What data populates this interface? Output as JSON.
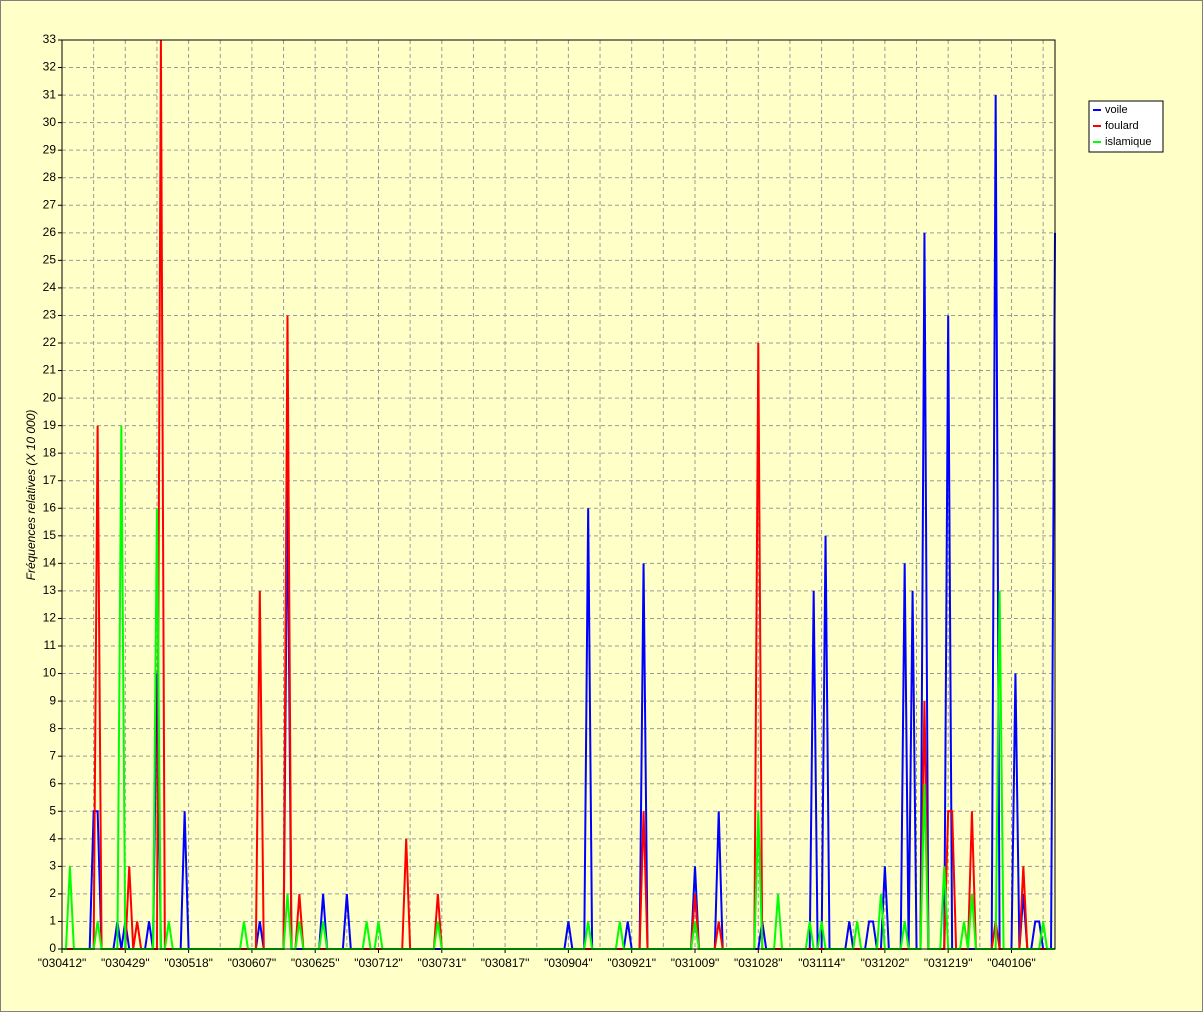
{
  "chart_data": {
    "type": "line",
    "ylabel": "Fréquences relatives (X 10 000)",
    "ylim": [
      0,
      33
    ],
    "yticks": [
      0,
      1,
      2,
      3,
      4,
      5,
      6,
      7,
      8,
      9,
      10,
      11,
      12,
      13,
      14,
      15,
      16,
      17,
      18,
      19,
      20,
      21,
      22,
      23,
      24,
      25,
      26,
      27,
      28,
      29,
      30,
      31,
      32,
      33
    ],
    "grid": true,
    "legend": "right",
    "categories": [
      "\"030412\"",
      null,
      null,
      null,
      null,
      null,
      null,
      null,
      null,
      null,
      null,
      null,
      null,
      null,
      null,
      null,
      "\"030429\"",
      null,
      null,
      null,
      null,
      null,
      null,
      null,
      null,
      null,
      null,
      null,
      null,
      null,
      null,
      null,
      "\"030518\"",
      null,
      null,
      null,
      null,
      null,
      null,
      null,
      null,
      null,
      null,
      null,
      null,
      null,
      null,
      null,
      "\"030607\"",
      null,
      null,
      null,
      null,
      null,
      null,
      null,
      null,
      null,
      null,
      null,
      null,
      null,
      null,
      null,
      "\"030625\"",
      null,
      null,
      null,
      null,
      null,
      null,
      null,
      null,
      null,
      null,
      null,
      null,
      null,
      null,
      null,
      "\"030712\"",
      null,
      null,
      null,
      null,
      null,
      null,
      null,
      null,
      null,
      null,
      null,
      null,
      null,
      null,
      null,
      "\"030731\"",
      null,
      null,
      null,
      null,
      null,
      null,
      null,
      null,
      null,
      null,
      null,
      null,
      null,
      null,
      null,
      "\"030817\"",
      null,
      null,
      null,
      null,
      null,
      null,
      null,
      null,
      null,
      null,
      null,
      null,
      null,
      null,
      null,
      "\"030904\"",
      null,
      null,
      null,
      null,
      null,
      null,
      null,
      null,
      null,
      null,
      null,
      null,
      null,
      null,
      null,
      "\"030921\"",
      null,
      null,
      null,
      null,
      null,
      null,
      null,
      null,
      null,
      null,
      null,
      null,
      null,
      null,
      null,
      "\"031009\"",
      null,
      null,
      null,
      null,
      null,
      null,
      null,
      null,
      null,
      null,
      null,
      null,
      null,
      null,
      null,
      "\"031028\"",
      null,
      null,
      null,
      null,
      null,
      null,
      null,
      null,
      null,
      null,
      null,
      null,
      null,
      null,
      null,
      "\"031114\"",
      null,
      null,
      null,
      null,
      null,
      null,
      null,
      null,
      null,
      null,
      null,
      null,
      null,
      null,
      null,
      "\"031202\"",
      null,
      null,
      null,
      null,
      null,
      null,
      null,
      null,
      null,
      null,
      null,
      null,
      null,
      null,
      null,
      "\"031219\"",
      null,
      null,
      null,
      null,
      null,
      null,
      null,
      null,
      null,
      null,
      null,
      null,
      null,
      null,
      null,
      "\"040106\"",
      null,
      null,
      null,
      null,
      null,
      null,
      null,
      null,
      null,
      null,
      null
    ],
    "series": [
      {
        "name": "voile",
        "color": "#0000ff",
        "values": [
          0,
          0,
          0,
          0,
          0,
          0,
          0,
          0,
          5,
          5,
          0,
          0,
          0,
          0,
          1,
          0,
          1,
          0,
          0,
          0,
          0,
          0,
          1,
          0,
          10,
          0,
          0,
          0,
          0,
          0,
          0,
          5,
          0,
          0,
          0,
          0,
          0,
          0,
          0,
          0,
          0,
          0,
          0,
          0,
          0,
          0,
          0,
          0,
          0,
          0,
          1,
          0,
          0,
          0,
          0,
          0,
          0,
          17,
          0,
          0,
          0,
          0,
          0,
          0,
          0,
          0,
          2,
          0,
          0,
          0,
          0,
          0,
          2,
          0,
          0,
          0,
          0,
          0,
          0,
          0,
          0,
          0,
          0,
          0,
          0,
          0,
          0,
          0,
          0,
          0,
          0,
          0,
          0,
          0,
          0,
          0,
          0,
          0,
          0,
          0,
          0,
          0,
          0,
          0,
          0,
          0,
          0,
          0,
          0,
          0,
          0,
          0,
          0,
          0,
          0,
          0,
          0,
          0,
          0,
          0,
          0,
          0,
          0,
          0,
          0,
          0,
          0,
          0,
          1,
          0,
          0,
          0,
          0,
          16,
          0,
          0,
          0,
          0,
          0,
          0,
          0,
          0,
          0,
          1,
          0,
          0,
          0,
          14,
          0,
          0,
          0,
          0,
          0,
          0,
          0,
          0,
          0,
          0,
          0,
          0,
          3,
          0,
          0,
          0,
          0,
          0,
          5,
          0,
          0,
          0,
          0,
          0,
          0,
          0,
          0,
          0,
          0,
          1,
          0,
          0,
          0,
          0,
          0,
          0,
          0,
          0,
          0,
          0,
          0,
          0,
          13,
          0,
          0,
          15,
          0,
          0,
          0,
          0,
          0,
          1,
          0,
          0,
          0,
          0,
          1,
          1,
          0,
          0,
          3,
          0,
          0,
          0,
          0,
          14,
          0,
          13,
          0,
          0,
          26,
          0,
          0,
          0,
          0,
          0,
          23,
          0,
          0,
          0,
          0,
          0,
          0,
          0,
          0,
          0,
          0,
          0,
          31,
          0,
          0,
          0,
          0,
          10,
          0,
          2,
          0,
          0,
          1,
          1,
          0,
          0,
          0,
          26
        ]
      },
      {
        "name": "foulard",
        "color": "#ff0000",
        "values": [
          0,
          0,
          0,
          0,
          0,
          0,
          0,
          0,
          0,
          19,
          0,
          0,
          0,
          0,
          0,
          0,
          0,
          3,
          0,
          1,
          0,
          0,
          0,
          0,
          0,
          33,
          0,
          0,
          0,
          0,
          0,
          0,
          0,
          0,
          0,
          0,
          0,
          0,
          0,
          0,
          0,
          0,
          0,
          0,
          0,
          0,
          0,
          0,
          0,
          0,
          13,
          0,
          0,
          0,
          0,
          0,
          0,
          23,
          0,
          0,
          2,
          0,
          0,
          0,
          0,
          0,
          0,
          0,
          0,
          0,
          0,
          0,
          0,
          0,
          0,
          0,
          0,
          0,
          0,
          0,
          0,
          0,
          0,
          0,
          0,
          0,
          0,
          4,
          0,
          0,
          0,
          0,
          0,
          0,
          0,
          2,
          0,
          0,
          0,
          0,
          0,
          0,
          0,
          0,
          0,
          0,
          0,
          0,
          0,
          0,
          0,
          0,
          0,
          0,
          0,
          0,
          0,
          0,
          0,
          0,
          0,
          0,
          0,
          0,
          0,
          0,
          0,
          0,
          0,
          0,
          0,
          0,
          0,
          0,
          0,
          0,
          0,
          0,
          0,
          0,
          0,
          0,
          0,
          0,
          0,
          0,
          0,
          5,
          0,
          0,
          0,
          0,
          0,
          0,
          0,
          0,
          0,
          0,
          0,
          0,
          2,
          0,
          0,
          0,
          0,
          0,
          1,
          0,
          0,
          0,
          0,
          0,
          0,
          0,
          0,
          0,
          22,
          0,
          0,
          0,
          0,
          0,
          0,
          0,
          0,
          0,
          0,
          0,
          0,
          0,
          0,
          0,
          0,
          0,
          0,
          0,
          0,
          0,
          0,
          0,
          0,
          0,
          0,
          0,
          0,
          0,
          0,
          0,
          0,
          0,
          0,
          0,
          0,
          0,
          0,
          0,
          0,
          0,
          9,
          0,
          0,
          0,
          0,
          0,
          5,
          5,
          0,
          0,
          0,
          0,
          5,
          0,
          0,
          0,
          0,
          0,
          1,
          0,
          0,
          0,
          0,
          0,
          0,
          3,
          0,
          0,
          0,
          0,
          0,
          0,
          0,
          0
        ]
      },
      {
        "name": "islamique",
        "color": "#00ff00",
        "values": [
          0,
          0,
          3,
          0,
          0,
          0,
          0,
          0,
          0,
          1,
          0,
          0,
          0,
          0,
          0,
          19,
          0,
          0,
          0,
          0,
          0,
          0,
          0,
          0,
          16,
          0,
          0,
          1,
          0,
          0,
          0,
          0,
          0,
          0,
          0,
          0,
          0,
          0,
          0,
          0,
          0,
          0,
          0,
          0,
          0,
          0,
          1,
          0,
          0,
          0,
          0,
          0,
          0,
          0,
          0,
          0,
          0,
          2,
          0,
          0,
          1,
          0,
          0,
          0,
          0,
          0,
          1,
          0,
          0,
          0,
          0,
          0,
          0,
          0,
          0,
          0,
          0,
          1,
          0,
          0,
          1,
          0,
          0,
          0,
          0,
          0,
          0,
          0,
          0,
          0,
          0,
          0,
          0,
          0,
          0,
          1,
          0,
          0,
          0,
          0,
          0,
          0,
          0,
          0,
          0,
          0,
          0,
          0,
          0,
          0,
          0,
          0,
          0,
          0,
          0,
          0,
          0,
          0,
          0,
          0,
          0,
          0,
          0,
          0,
          0,
          0,
          0,
          0,
          0,
          0,
          0,
          0,
          0,
          1,
          0,
          0,
          0,
          0,
          0,
          0,
          0,
          1,
          0,
          0,
          0,
          0,
          0,
          0,
          0,
          0,
          0,
          0,
          0,
          0,
          0,
          0,
          0,
          0,
          0,
          0,
          1,
          0,
          0,
          0,
          0,
          0,
          0,
          0,
          0,
          0,
          0,
          0,
          0,
          0,
          0,
          0,
          5,
          0,
          0,
          0,
          0,
          2,
          0,
          0,
          0,
          0,
          0,
          0,
          0,
          1,
          0,
          0,
          1,
          0,
          0,
          0,
          0,
          0,
          0,
          0,
          0,
          1,
          0,
          0,
          0,
          0,
          0,
          2,
          0,
          0,
          0,
          0,
          0,
          1,
          0,
          0,
          0,
          0,
          6,
          0,
          0,
          0,
          0,
          3,
          0,
          0,
          0,
          0,
          1,
          0,
          2,
          0,
          0,
          0,
          0,
          0,
          0,
          13,
          0,
          0,
          0,
          0,
          0,
          0,
          0,
          0,
          0,
          0,
          1,
          0,
          0,
          0
        ]
      }
    ]
  }
}
